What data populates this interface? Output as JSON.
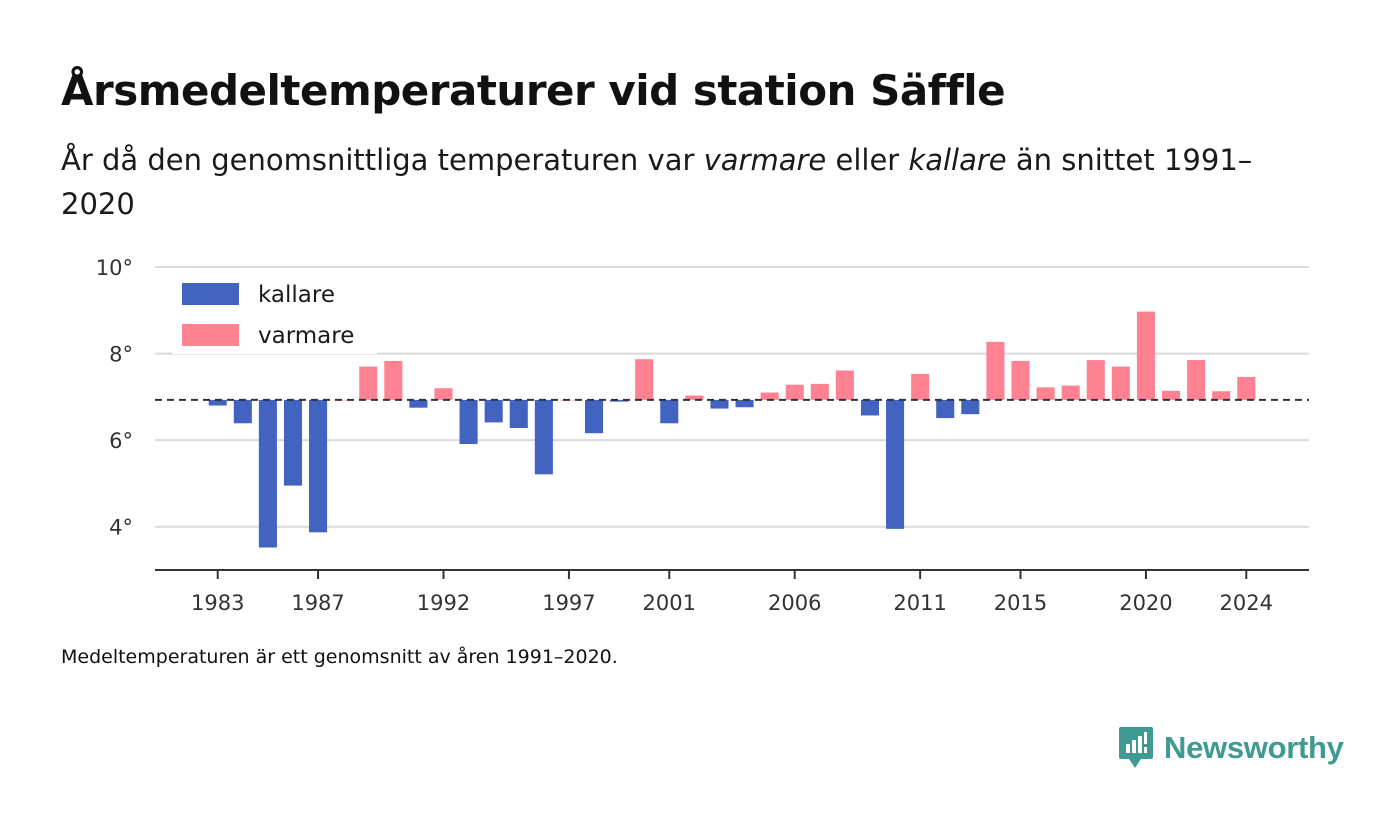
{
  "header": {
    "title": "Årsmedeltemperaturer vid station Säffle",
    "subtitle_part1": "År då den genomsnittliga temperaturen var ",
    "subtitle_em1": "varmare",
    "subtitle_part2": " eller ",
    "subtitle_em2": "kallare",
    "subtitle_part3": " än snittet 1991–2020"
  },
  "note": "Medeltemperaturen är ett genomsnitt av åren 1991–2020.",
  "brand": {
    "name": "Newsworthy",
    "color": "#3f9a92"
  },
  "chart_data": {
    "type": "bar",
    "baseline": 6.93,
    "ylim": [
      3,
      10
    ],
    "y_ticks": [
      4,
      6,
      8,
      10
    ],
    "y_tick_labels": [
      "4°",
      "6°",
      "8°",
      "10°"
    ],
    "x_ticks": [
      1983,
      1987,
      1992,
      1997,
      2001,
      2006,
      2011,
      2015,
      2020,
      2024
    ],
    "x_tick_labels": [
      "1983",
      "1987",
      "1992",
      "1997",
      "2001",
      "2006",
      "2011",
      "2015",
      "2020",
      "2024"
    ],
    "xlim": [
      1980.5,
      2026.5
    ],
    "grid": true,
    "legend_position": "top-left",
    "colors": {
      "kallare": "#4263c0",
      "varmare": "#ff8293"
    },
    "series": [
      {
        "name": "kallare",
        "color_key": "kallare"
      },
      {
        "name": "varmare",
        "color_key": "varmare"
      }
    ],
    "x": [
      1983,
      1984,
      1985,
      1986,
      1987,
      1988,
      1989,
      1990,
      1991,
      1992,
      1993,
      1994,
      1995,
      1996,
      1997,
      1998,
      1999,
      2000,
      2001,
      2002,
      2003,
      2004,
      2005,
      2006,
      2007,
      2008,
      2009,
      2010,
      2011,
      2012,
      2013,
      2014,
      2015,
      2016,
      2017,
      2018,
      2019,
      2020,
      2021,
      2022,
      2023,
      2024
    ],
    "values": [
      6.8,
      6.39,
      3.52,
      4.95,
      3.87,
      6.93,
      7.7,
      7.83,
      6.75,
      7.2,
      5.91,
      6.41,
      6.28,
      5.21,
      6.93,
      6.16,
      6.89,
      7.87,
      6.39,
      7.03,
      6.73,
      6.76,
      7.1,
      7.28,
      7.3,
      7.61,
      6.57,
      3.95,
      7.53,
      6.51,
      6.6,
      8.27,
      7.83,
      7.22,
      7.26,
      7.85,
      7.7,
      8.97,
      7.14,
      7.85,
      7.13,
      7.46
    ]
  }
}
